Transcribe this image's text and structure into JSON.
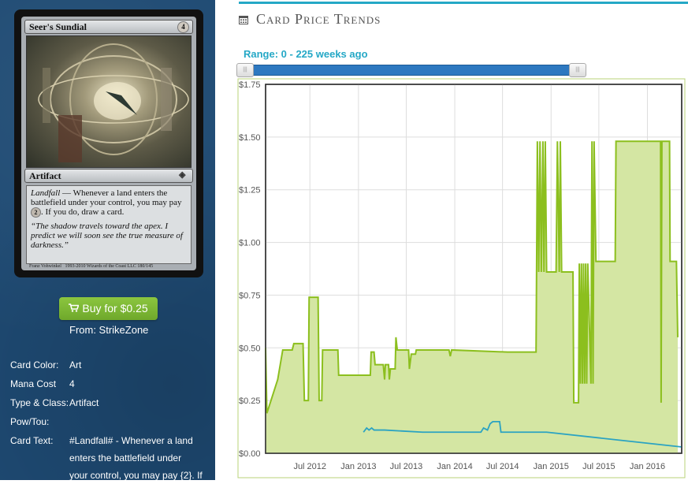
{
  "card": {
    "name": "Seer's Sundial",
    "mana_cost_symbol": "4",
    "type_line": "Artifact",
    "rules_text_ability": "Landfall",
    "rules_text": " — Whenever a land enters the battlefield under your control, you may pay ",
    "rules_text_cost": "2",
    "rules_text_end": ". If you do, draw a card.",
    "flavor_text": "“The shadow travels toward the apex. I predict we will soon see the true measure of darkness.”",
    "artist_line": "Franz Vohwinkel",
    "copyright": "1993-2010 Wizards of the Coast LLC 180/145"
  },
  "buy": {
    "label": "Buy for $0.25",
    "source": "From: StrikeZone"
  },
  "details": [
    {
      "label": "Card Color:",
      "value": "Art"
    },
    {
      "label": "Mana Cost",
      "value": "4"
    },
    {
      "label": "Type & Class:",
      "value": "Artifact"
    },
    {
      "label": "Pow/Tou:",
      "value": ""
    },
    {
      "label": "Card Text:",
      "value": "#Landfall# - Whenever a land"
    }
  ],
  "card_text_continued": [
    "enters the battlefield under",
    "your control, you may pay {2}. If"
  ],
  "panel": {
    "title": "Card Price Trends",
    "range_label": "Range: 0 - 225 weeks ago",
    "accent_color": "#25a8c6"
  },
  "chart_data": {
    "type": "area",
    "x_unit": "date",
    "x_ticks": [
      "Jul 2012",
      "Jan 2013",
      "Jul 2013",
      "Jan 2014",
      "Jul 2014",
      "Jan 2015",
      "Jul 2015",
      "Jan 2016"
    ],
    "y_ticks": [
      "$0.00",
      "$0.25",
      "$0.50",
      "$0.75",
      "$1.00",
      "$1.25",
      "$1.50",
      "$1.75"
    ],
    "ylim": [
      0,
      1.75
    ],
    "xlim": [
      "2012-01-15",
      "2016-05-10"
    ],
    "grid": true,
    "series": [
      {
        "color": "#8cbf1e",
        "fill": "#d4e6a3",
        "points": [
          [
            "2012-01-15",
            0.5
          ],
          [
            "2012-01-20",
            0.19
          ],
          [
            "2012-03-01",
            0.35
          ],
          [
            "2012-03-20",
            0.49
          ],
          [
            "2012-04-25",
            0.49
          ],
          [
            "2012-05-01",
            0.52
          ],
          [
            "2012-06-05",
            0.52
          ],
          [
            "2012-06-10",
            0.25
          ],
          [
            "2012-06-25",
            0.25
          ],
          [
            "2012-06-28",
            0.74
          ],
          [
            "2012-08-01",
            0.74
          ],
          [
            "2012-08-05",
            0.25
          ],
          [
            "2012-08-15",
            0.25
          ],
          [
            "2012-08-18",
            0.49
          ],
          [
            "2012-10-15",
            0.49
          ],
          [
            "2012-10-18",
            0.37
          ],
          [
            "2013-02-15",
            0.37
          ],
          [
            "2013-02-18",
            0.48
          ],
          [
            "2013-03-01",
            0.48
          ],
          [
            "2013-03-05",
            0.42
          ],
          [
            "2013-04-05",
            0.42
          ],
          [
            "2013-04-10",
            0.35
          ],
          [
            "2013-04-13",
            0.42
          ],
          [
            "2013-04-25",
            0.42
          ],
          [
            "2013-04-28",
            0.35
          ],
          [
            "2013-05-02",
            0.4
          ],
          [
            "2013-05-20",
            0.4
          ],
          [
            "2013-05-23",
            0.55
          ],
          [
            "2013-05-28",
            0.49
          ],
          [
            "2013-07-10",
            0.49
          ],
          [
            "2013-07-13",
            0.4
          ],
          [
            "2013-07-20",
            0.47
          ],
          [
            "2013-08-05",
            0.47
          ],
          [
            "2013-08-08",
            0.49
          ],
          [
            "2013-12-10",
            0.49
          ],
          [
            "2013-12-15",
            0.46
          ],
          [
            "2013-12-20",
            0.49
          ],
          [
            "2014-07-20",
            0.48
          ],
          [
            "2014-11-05",
            0.48
          ],
          [
            "2014-11-07",
            0.86
          ],
          [
            "2014-11-10",
            1.48
          ],
          [
            "2014-11-15",
            0.86
          ],
          [
            "2014-11-20",
            1.48
          ],
          [
            "2014-11-25",
            0.86
          ],
          [
            "2014-12-01",
            1.48
          ],
          [
            "2014-12-05",
            0.86
          ],
          [
            "2014-12-10",
            1.48
          ],
          [
            "2014-12-15",
            0.86
          ],
          [
            "2015-01-20",
            0.86
          ],
          [
            "2015-01-25",
            1.48
          ],
          [
            "2015-02-01",
            0.86
          ],
          [
            "2015-02-05",
            1.48
          ],
          [
            "2015-02-10",
            0.86
          ],
          [
            "2015-03-25",
            0.86
          ],
          [
            "2015-03-28",
            0.24
          ],
          [
            "2015-04-15",
            0.24
          ],
          [
            "2015-04-18",
            0.9
          ],
          [
            "2015-04-22",
            0.33
          ],
          [
            "2015-04-26",
            0.9
          ],
          [
            "2015-04-30",
            0.33
          ],
          [
            "2015-05-04",
            0.9
          ],
          [
            "2015-05-08",
            0.33
          ],
          [
            "2015-05-12",
            0.9
          ],
          [
            "2015-05-16",
            0.33
          ],
          [
            "2015-05-20",
            0.9
          ],
          [
            "2015-06-01",
            0.33
          ],
          [
            "2015-06-05",
            1.48
          ],
          [
            "2015-06-09",
            0.33
          ],
          [
            "2015-06-13",
            1.48
          ],
          [
            "2015-06-20",
            0.91
          ],
          [
            "2015-09-01",
            0.91
          ],
          [
            "2015-09-04",
            1.48
          ],
          [
            "2016-02-20",
            1.48
          ],
          [
            "2016-02-22",
            0.24
          ],
          [
            "2016-02-25",
            1.48
          ],
          [
            "2016-03-25",
            1.48
          ],
          [
            "2016-03-27",
            0.91
          ],
          [
            "2016-04-20",
            0.91
          ],
          [
            "2016-04-25",
            0.55
          ]
        ]
      },
      {
        "color": "#2ba3c2",
        "points": [
          [
            "2013-01-20",
            0.1
          ],
          [
            "2013-02-01",
            0.12
          ],
          [
            "2013-02-10",
            0.11
          ],
          [
            "2013-02-20",
            0.12
          ],
          [
            "2013-03-01",
            0.11
          ],
          [
            "2013-04-10",
            0.11
          ],
          [
            "2013-09-01",
            0.1
          ],
          [
            "2014-04-10",
            0.1
          ],
          [
            "2014-04-20",
            0.12
          ],
          [
            "2014-05-05",
            0.11
          ],
          [
            "2014-05-15",
            0.14
          ],
          [
            "2014-05-25",
            0.15
          ],
          [
            "2014-06-20",
            0.15
          ],
          [
            "2014-06-25",
            0.1
          ],
          [
            "2014-12-15",
            0.1
          ],
          [
            "2016-05-10",
            0.03
          ]
        ]
      }
    ]
  }
}
